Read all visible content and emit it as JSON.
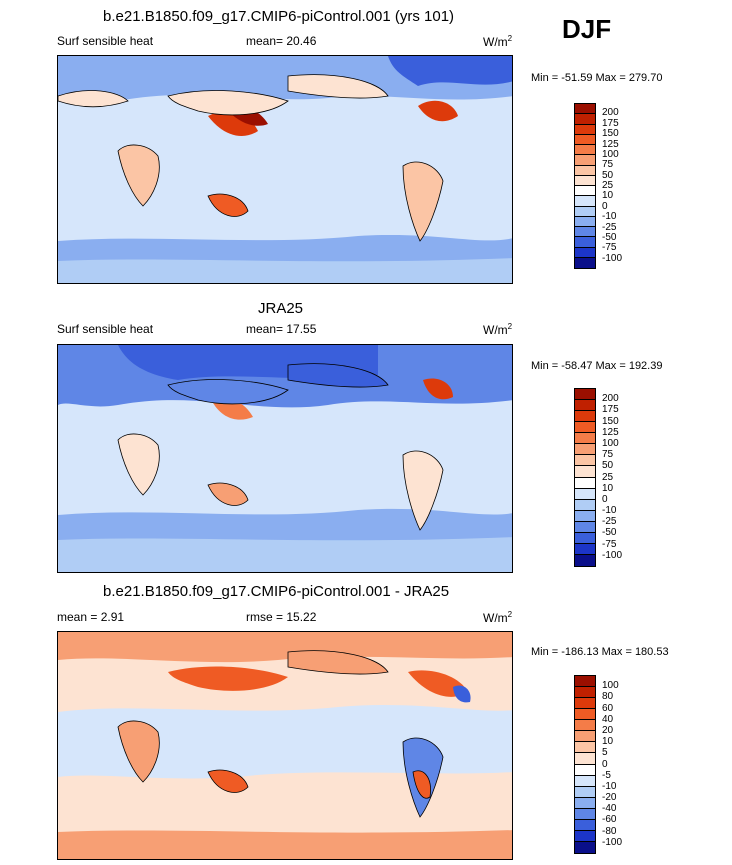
{
  "season": "DJF",
  "units": "W/m",
  "units_exp": "2",
  "panels": [
    {
      "title": "b.e21.B1850.f09_g17.CMIP6-piControl.001 (yrs 101)",
      "left_label": "Surf sensible heat",
      "mean_text": "mean=  20.46",
      "minmax": "Min = -51.59 Max = 279.70"
    },
    {
      "title": "JRA25",
      "left_label": "Surf sensible heat",
      "mean_text": "mean=  17.55",
      "minmax": "Min = -58.47 Max = 192.39"
    },
    {
      "title": "b.e21.B1850.f09_g17.CMIP6-piControl.001 - JRA25",
      "left_label": "mean =   2.91",
      "mean_text": "rmse =  15.22",
      "minmax": "Min = -186.13 Max = 180.53"
    }
  ],
  "colorbars": {
    "field": {
      "labels": [
        "200",
        "175",
        "150",
        "125",
        "100",
        "75",
        "50",
        "25",
        "10",
        "0",
        "-10",
        "-25",
        "-50",
        "-75",
        "-100"
      ],
      "colors": [
        "#9b0f00",
        "#c02000",
        "#dd3a0b",
        "#ef5b24",
        "#f47c48",
        "#f79f74",
        "#fbc5a5",
        "#fde3d2",
        "#ffffff",
        "#d6e6fb",
        "#b0cdf5",
        "#8aaef0",
        "#5f86e6",
        "#3a5fdb",
        "#1c35c8",
        "#0a0f8a"
      ]
    },
    "diff": {
      "labels": [
        "100",
        "80",
        "60",
        "40",
        "20",
        "10",
        "5",
        "0",
        "-5",
        "-10",
        "-20",
        "-40",
        "-60",
        "-80",
        "-100"
      ],
      "colors": [
        "#9b0f00",
        "#c02000",
        "#dd3a0b",
        "#ef5b24",
        "#f47c48",
        "#f79f74",
        "#fbc5a5",
        "#fde3d2",
        "#ffffff",
        "#d6e6fb",
        "#b0cdf5",
        "#8aaef0",
        "#5f86e6",
        "#3a5fdb",
        "#1c35c8",
        "#0a0f8a"
      ]
    }
  },
  "chart_data": [
    {
      "type": "heatmap",
      "title": "b.e21.B1850.f09_g17.CMIP6-piControl.001 (yrs 101)",
      "variable": "Surf sensible heat",
      "units": "W/m2",
      "season": "DJF",
      "mean": 20.46,
      "min": -51.59,
      "max": 279.7,
      "levels": [
        -100,
        -75,
        -50,
        -25,
        -10,
        0,
        10,
        25,
        50,
        75,
        100,
        125,
        150,
        175,
        200
      ]
    },
    {
      "type": "heatmap",
      "title": "JRA25",
      "variable": "Surf sensible heat",
      "units": "W/m2",
      "season": "DJF",
      "mean": 17.55,
      "min": -58.47,
      "max": 192.39,
      "levels": [
        -100,
        -75,
        -50,
        -25,
        -10,
        0,
        10,
        25,
        50,
        75,
        100,
        125,
        150,
        175,
        200
      ]
    },
    {
      "type": "heatmap",
      "title": "b.e21.B1850.f09_g17.CMIP6-piControl.001 - JRA25",
      "units": "W/m2",
      "season": "DJF",
      "mean": 2.91,
      "rmse": 15.22,
      "min": -186.13,
      "max": 180.53,
      "levels": [
        -100,
        -80,
        -60,
        -40,
        -20,
        -10,
        -5,
        0,
        5,
        10,
        20,
        40,
        60,
        80,
        100
      ]
    }
  ]
}
